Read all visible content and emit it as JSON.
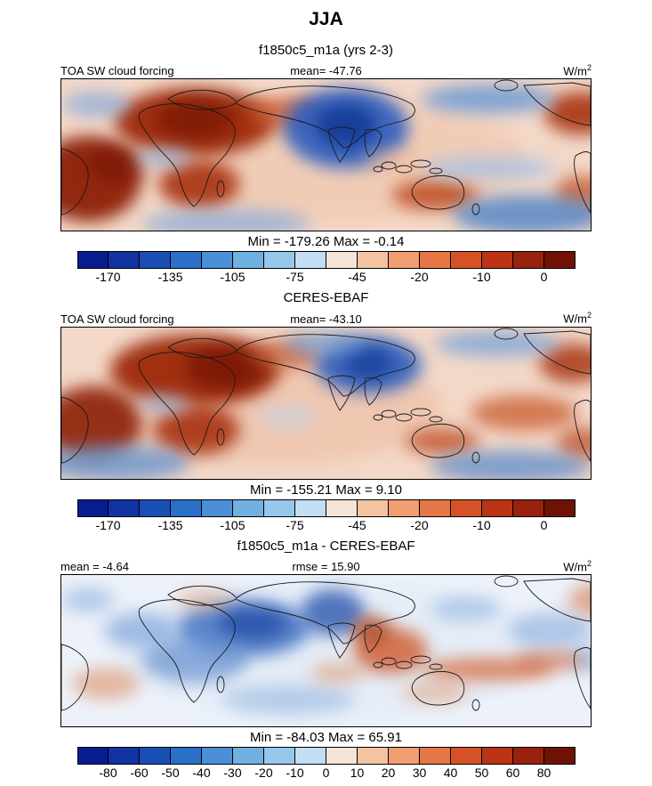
{
  "header": {
    "title": "JJA",
    "subtitle": "f1850c5_m1a (yrs 2-3)"
  },
  "section_titles": {
    "obs": "CERES-EBAF",
    "diff": "f1850c5_m1a - CERES-EBAF"
  },
  "panels": [
    {
      "id": "model",
      "left_label": "TOA SW cloud forcing",
      "center_label": "mean= -47.76",
      "unit": {
        "base": "W/m",
        "sup": "2"
      },
      "minmax": "Min = -179.26 Max =  -0.14"
    },
    {
      "id": "obs",
      "left_label": "TOA SW cloud forcing",
      "center_label": "mean= -43.10",
      "unit": {
        "base": "W/m",
        "sup": "2"
      },
      "minmax": "Min = -155.21 Max =   9.10"
    },
    {
      "id": "diff",
      "left_label": "mean =  -4.64",
      "center_label": "rmse =  15.90",
      "unit": {
        "base": "W/m",
        "sup": "2"
      },
      "minmax": "Min = -84.03 Max =  65.91"
    }
  ],
  "colorbars": {
    "main": {
      "ticks": [
        "-170",
        "-135",
        "-105",
        "-75",
        "-45",
        "-20",
        "-10",
        "0"
      ],
      "colors": [
        "#081d8f",
        "#10339f",
        "#1b4fb5",
        "#2a6fc8",
        "#4b90d6",
        "#6fb0e2",
        "#97c8ec",
        "#c3ddf3",
        "#f5e3d8",
        "#f4c3a2",
        "#ef9f72",
        "#e57747",
        "#d55128",
        "#bb3316",
        "#97220d",
        "#6f1205"
      ]
    },
    "diff": {
      "ticks": [
        "-80",
        "-60",
        "-50",
        "-40",
        "-30",
        "-20",
        "-10",
        "0",
        "10",
        "20",
        "30",
        "40",
        "50",
        "60",
        "80"
      ],
      "colors": [
        "#081d8f",
        "#10339f",
        "#1b4fb5",
        "#2a6fc8",
        "#4b90d6",
        "#6fb0e2",
        "#97c8ec",
        "#c3ddf3",
        "#f5e3d8",
        "#f4c3a2",
        "#ef9f72",
        "#e57747",
        "#d55128",
        "#bb3316",
        "#97220d",
        "#6f1205"
      ]
    }
  },
  "chart_data": [
    {
      "type": "heatmap",
      "panel": "model",
      "title": "TOA SW cloud forcing",
      "dataset": "f1850c5_m1a (yrs 2-3)",
      "season": "JJA",
      "units": "W/m^2",
      "projection": "global latitude-longitude map",
      "stats": {
        "mean": -47.76,
        "min": -179.26,
        "max": -0.14
      },
      "colorbar_ticks": [
        -170,
        -135,
        -105,
        -75,
        -45,
        -20,
        -10,
        0
      ],
      "palette": "blue-to-red diverging, 16 discrete levels"
    },
    {
      "type": "heatmap",
      "panel": "observations",
      "title": "TOA SW cloud forcing",
      "dataset": "CERES-EBAF",
      "season": "JJA",
      "units": "W/m^2",
      "projection": "global latitude-longitude map",
      "stats": {
        "mean": -43.1,
        "min": -155.21,
        "max": 9.1
      },
      "colorbar_ticks": [
        -170,
        -135,
        -105,
        -75,
        -45,
        -20,
        -10,
        0
      ],
      "palette": "blue-to-red diverging, 16 discrete levels"
    },
    {
      "type": "heatmap",
      "panel": "difference",
      "title": "f1850c5_m1a - CERES-EBAF",
      "season": "JJA",
      "units": "W/m^2",
      "projection": "global latitude-longitude map",
      "stats": {
        "mean": -4.64,
        "rmse": 15.9,
        "min": -84.03,
        "max": 65.91
      },
      "colorbar_ticks": [
        -80,
        -60,
        -50,
        -40,
        -30,
        -20,
        -10,
        0,
        10,
        20,
        30,
        40,
        50,
        60,
        80
      ],
      "palette": "blue-to-red diverging, 16 discrete levels"
    }
  ]
}
